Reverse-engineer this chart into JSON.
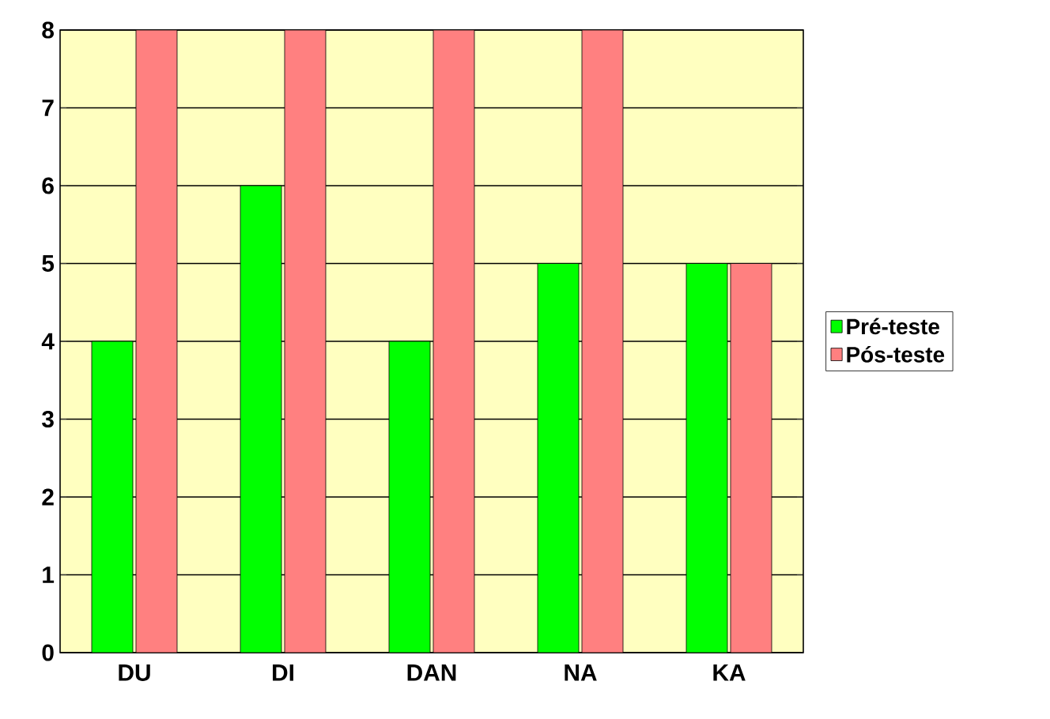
{
  "chart_data": {
    "type": "bar",
    "categories": [
      "DU",
      "DI",
      "DAN",
      "NA",
      "KA"
    ],
    "series": [
      {
        "name": "Pré-teste",
        "color": "#00ff00",
        "values": [
          4,
          6,
          4,
          5,
          5
        ]
      },
      {
        "name": "Pós-teste",
        "color": "#ff8080",
        "values": [
          8,
          8,
          8,
          8,
          5
        ]
      }
    ],
    "ylim": [
      0,
      8
    ],
    "yticks": [
      0,
      1,
      2,
      3,
      4,
      5,
      6,
      7,
      8
    ],
    "grid": "y",
    "legend": "right"
  }
}
